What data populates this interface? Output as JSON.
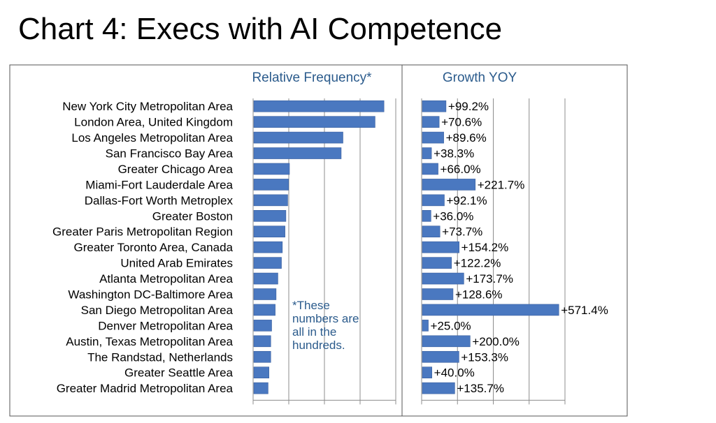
{
  "title": "Chart 4: Execs with AI Competence",
  "colors": {
    "bar": "#4a78c0",
    "bar_edge": "#3a5f9e",
    "header": "#2b5b8c",
    "note": "#2b5b8c",
    "frame": "#555555",
    "grid": "#8c8c8c"
  },
  "chart_data": [
    {
      "type": "bar",
      "orientation": "horizontal",
      "title": "Relative Frequency*",
      "categories": [
        "New York City Metropolitan Area",
        "London Area, United Kingdom",
        "Los Angeles Metropolitan Area",
        "San Francisco Bay Area",
        "Greater Chicago Area",
        "Miami-Fort Lauderdale Area",
        "Dallas-Fort Worth Metroplex",
        "Greater Boston",
        "Greater Paris Metropolitan Region",
        "Greater Toronto Area, Canada",
        "United Arab Emirates",
        "Atlanta Metropolitan Area",
        "Washington DC-Baltimore Area",
        "San Diego Metropolitan Area",
        "Denver Metropolitan Area",
        "Austin, Texas Metropolitan Area",
        "The Randstad, Netherlands",
        "Greater Seattle Area",
        "Greater Madrid Metropolitan Area"
      ],
      "values": [
        7.3,
        6.8,
        5.0,
        4.9,
        2.0,
        1.95,
        1.9,
        1.8,
        1.75,
        1.6,
        1.55,
        1.35,
        1.25,
        1.2,
        1.0,
        0.95,
        0.95,
        0.85,
        0.8
      ],
      "xlim": [
        0,
        8
      ],
      "grid": true,
      "note": [
        "*These",
        "numbers are",
        "all in the",
        "hundreds."
      ]
    },
    {
      "type": "bar",
      "orientation": "horizontal",
      "title": "Growth YOY",
      "categories": [
        "New York City Metropolitan Area",
        "London Area, United Kingdom",
        "Los Angeles Metropolitan Area",
        "San Francisco Bay Area",
        "Greater Chicago Area",
        "Miami-Fort Lauderdale Area",
        "Dallas-Fort Worth Metroplex",
        "Greater Boston",
        "Greater Paris Metropolitan Region",
        "Greater Toronto Area, Canada",
        "United Arab Emirates",
        "Atlanta Metropolitan Area",
        "Washington DC-Baltimore Area",
        "San Diego Metropolitan Area",
        "Denver Metropolitan Area",
        "Austin, Texas Metropolitan Area",
        "The Randstad, Netherlands",
        "Greater Seattle Area",
        "Greater Madrid Metropolitan Area"
      ],
      "values": [
        99.2,
        70.6,
        89.6,
        38.3,
        66.0,
        221.7,
        92.1,
        36.0,
        73.7,
        154.2,
        122.2,
        173.7,
        128.6,
        571.4,
        25.0,
        200.0,
        153.3,
        40.0,
        135.7
      ],
      "data_labels": [
        "+99.2%",
        "+70.6%",
        "+89.6%",
        "+38.3%",
        "+66.0%",
        "+221.7%",
        "+92.1%",
        "+36.0%",
        "+73.7%",
        "+154.2%",
        "+122.2%",
        "+173.7%",
        "+128.6%",
        "+571.4%",
        "+25.0%",
        "+200.0%",
        "+153.3%",
        "+40.0%",
        "+135.7%"
      ],
      "xlim": [
        0,
        600
      ],
      "grid": true
    }
  ]
}
